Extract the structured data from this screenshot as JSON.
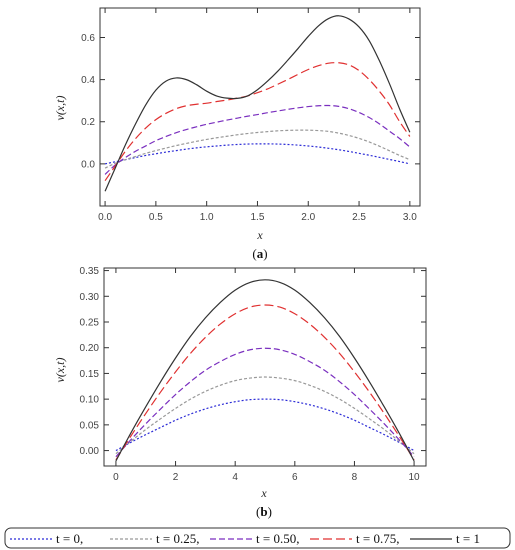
{
  "chart_data": [
    {
      "type": "line",
      "caption_letter": "a",
      "xlabel": "x",
      "ylabel": "v(x,t)",
      "xlim": [
        -0.05,
        3.1
      ],
      "ylim": [
        -0.2,
        0.74
      ],
      "x_ticks": [
        "0.0",
        "0.5",
        "1.0",
        "1.5",
        "2.0",
        "2.5",
        "3.0"
      ],
      "y_ticks": [
        "0.0",
        "0.2",
        "0.4",
        "0.6"
      ],
      "x_tick_values": [
        0,
        0.5,
        1,
        1.5,
        2,
        2.5,
        3
      ],
      "y_tick_values": [
        0,
        0.2,
        0.4,
        0.6
      ],
      "x": [
        0,
        0.1,
        0.2,
        0.3,
        0.4,
        0.5,
        0.6,
        0.7,
        0.8,
        0.9,
        1.0,
        1.1,
        1.2,
        1.3,
        1.4,
        1.5,
        1.6,
        1.7,
        1.8,
        1.9,
        2.0,
        2.1,
        2.2,
        2.3,
        2.4,
        2.5,
        2.6,
        2.7,
        2.8,
        2.9,
        3.0
      ],
      "series": [
        {
          "name": "t = 0",
          "color": "#2b2bd6",
          "dash": "2,2",
          "values": [
            0.0,
            0.01,
            0.02,
            0.03,
            0.04,
            0.048,
            0.056,
            0.063,
            0.07,
            0.076,
            0.081,
            0.085,
            0.089,
            0.092,
            0.094,
            0.095,
            0.095,
            0.094,
            0.092,
            0.089,
            0.085,
            0.08,
            0.074,
            0.067,
            0.059,
            0.05,
            0.041,
            0.031,
            0.021,
            0.011,
            0.0
          ]
        },
        {
          "name": "t = 0.25",
          "color": "#999999",
          "dash": "3,2",
          "values": [
            -0.02,
            0.003,
            0.02,
            0.035,
            0.05,
            0.063,
            0.075,
            0.087,
            0.097,
            0.107,
            0.116,
            0.124,
            0.131,
            0.138,
            0.144,
            0.149,
            0.153,
            0.157,
            0.159,
            0.16,
            0.16,
            0.158,
            0.154,
            0.146,
            0.135,
            0.121,
            0.104,
            0.084,
            0.062,
            0.04,
            0.02
          ]
        },
        {
          "name": "t = 0.50",
          "color": "#7a2fbf",
          "dash": "6,3",
          "values": [
            -0.05,
            -0.005,
            0.03,
            0.06,
            0.085,
            0.11,
            0.13,
            0.148,
            0.163,
            0.176,
            0.188,
            0.198,
            0.208,
            0.217,
            0.226,
            0.234,
            0.243,
            0.251,
            0.259,
            0.266,
            0.272,
            0.276,
            0.277,
            0.273,
            0.262,
            0.244,
            0.22,
            0.19,
            0.155,
            0.12,
            0.08
          ]
        },
        {
          "name": "t = 0.75",
          "color": "#e03030",
          "dash": "9,4",
          "values": [
            -0.08,
            -0.01,
            0.06,
            0.12,
            0.17,
            0.21,
            0.24,
            0.262,
            0.276,
            0.283,
            0.288,
            0.296,
            0.303,
            0.312,
            0.322,
            0.338,
            0.356,
            0.378,
            0.401,
            0.425,
            0.448,
            0.466,
            0.478,
            0.48,
            0.47,
            0.443,
            0.4,
            0.345,
            0.28,
            0.2,
            0.13
          ]
        },
        {
          "name": "t = 1",
          "color": "#333333",
          "dash": "",
          "values": [
            -0.13,
            -0.02,
            0.09,
            0.19,
            0.28,
            0.35,
            0.393,
            0.408,
            0.4,
            0.376,
            0.345,
            0.322,
            0.312,
            0.311,
            0.322,
            0.352,
            0.393,
            0.44,
            0.493,
            0.548,
            0.605,
            0.655,
            0.69,
            0.703,
            0.688,
            0.65,
            0.585,
            0.49,
            0.38,
            0.26,
            0.15
          ]
        }
      ]
    },
    {
      "type": "line",
      "caption_letter": "b",
      "xlabel": "x",
      "ylabel": "v(x,t)",
      "xlim": [
        -0.4,
        10.4
      ],
      "ylim": [
        -0.03,
        0.355
      ],
      "x_ticks": [
        "0",
        "2",
        "4",
        "6",
        "8",
        "10"
      ],
      "y_ticks": [
        "0.00",
        "0.05",
        "0.10",
        "0.15",
        "0.20",
        "0.25",
        "0.30",
        "0.35"
      ],
      "x_tick_values": [
        0,
        2,
        4,
        6,
        8,
        10
      ],
      "y_tick_values": [
        0,
        0.05,
        0.1,
        0.15,
        0.2,
        0.25,
        0.3,
        0.35
      ],
      "x": [
        0,
        0.5,
        1,
        1.5,
        2,
        2.5,
        3,
        3.5,
        4,
        4.5,
        5,
        5.5,
        6,
        6.5,
        7,
        7.5,
        8,
        8.5,
        9,
        9.5,
        10
      ],
      "series": [
        {
          "name": "t = 0",
          "color": "#2b2bd6",
          "dash": "2,2",
          "values": [
            0.0,
            0.016,
            0.031,
            0.045,
            0.059,
            0.071,
            0.081,
            0.089,
            0.095,
            0.099,
            0.1,
            0.099,
            0.095,
            0.089,
            0.081,
            0.071,
            0.059,
            0.045,
            0.031,
            0.016,
            0.0
          ]
        },
        {
          "name": "t = 0.25",
          "color": "#999999",
          "dash": "3,2",
          "values": [
            -0.006,
            0.018,
            0.041,
            0.062,
            0.082,
            0.1,
            0.115,
            0.127,
            0.136,
            0.141,
            0.143,
            0.141,
            0.136,
            0.127,
            0.115,
            0.1,
            0.082,
            0.062,
            0.041,
            0.018,
            -0.006
          ]
        },
        {
          "name": "t = 0.50",
          "color": "#7a2fbf",
          "dash": "6,3",
          "values": [
            -0.012,
            0.021,
            0.052,
            0.081,
            0.109,
            0.134,
            0.156,
            0.173,
            0.187,
            0.196,
            0.199,
            0.196,
            0.187,
            0.173,
            0.156,
            0.134,
            0.109,
            0.081,
            0.052,
            0.021,
            -0.012
          ]
        },
        {
          "name": "t = 0.75",
          "color": "#e03030",
          "dash": "9,4",
          "values": [
            -0.018,
            0.028,
            0.072,
            0.114,
            0.153,
            0.189,
            0.22,
            0.246,
            0.266,
            0.279,
            0.283,
            0.279,
            0.266,
            0.246,
            0.22,
            0.189,
            0.153,
            0.114,
            0.072,
            0.028,
            -0.018
          ]
        },
        {
          "name": "t = 1",
          "color": "#333333",
          "dash": "",
          "values": [
            -0.02,
            0.034,
            0.085,
            0.134,
            0.18,
            0.222,
            0.258,
            0.288,
            0.312,
            0.327,
            0.332,
            0.327,
            0.312,
            0.288,
            0.258,
            0.222,
            0.18,
            0.134,
            0.085,
            0.034,
            -0.02
          ]
        }
      ]
    }
  ],
  "legend": {
    "entries": [
      {
        "label": "t = 0,",
        "color": "#2b2bd6",
        "dash": "2,2"
      },
      {
        "label": "t = 0.25,",
        "color": "#999999",
        "dash": "3,2"
      },
      {
        "label": "t = 0.50,",
        "color": "#7a2fbf",
        "dash": "6,3"
      },
      {
        "label": "t = 0.75,",
        "color": "#e03030",
        "dash": "9,4"
      },
      {
        "label": "t = 1",
        "color": "#333333",
        "dash": ""
      }
    ]
  }
}
